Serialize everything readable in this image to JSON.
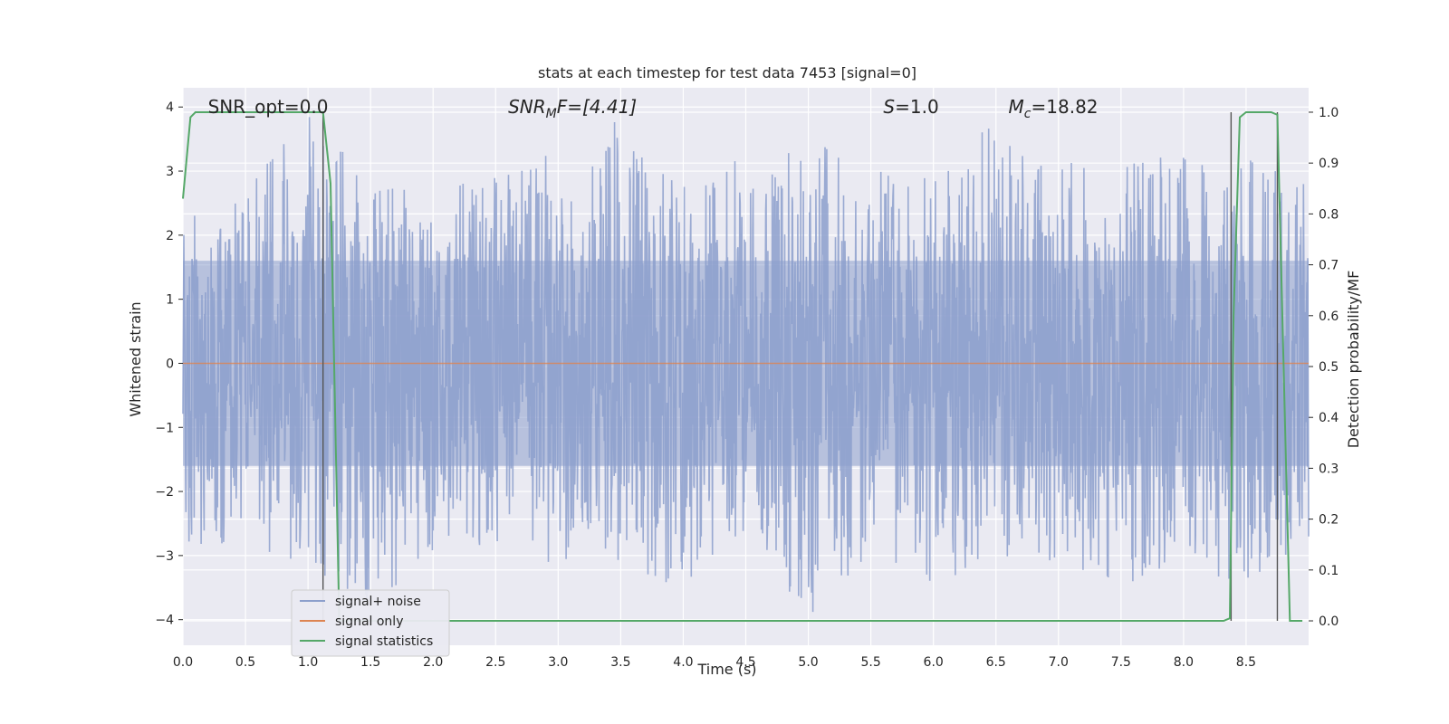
{
  "chart_data": {
    "type": "line",
    "title": "stats at each timestep for test data 7453 [signal=0]",
    "xlabel": "Time (s)",
    "ylabel": "Whitened strain",
    "y2label": "Detection probability/MF",
    "xlim": [
      0.0,
      9.0
    ],
    "ylim": [
      -4.4,
      4.3
    ],
    "y2lim": [
      -0.048,
      1.048
    ],
    "x_ticks": [
      "0.0",
      "0.5",
      "1.0",
      "1.5",
      "2.0",
      "2.5",
      "3.0",
      "3.5",
      "4.0",
      "4.5",
      "5.0",
      "5.5",
      "6.0",
      "6.5",
      "7.0",
      "7.5",
      "8.0",
      "8.5"
    ],
    "x_tick_values": [
      0.0,
      0.5,
      1.0,
      1.5,
      2.0,
      2.5,
      3.0,
      3.5,
      4.0,
      4.5,
      5.0,
      5.5,
      6.0,
      6.5,
      7.0,
      7.5,
      8.0,
      8.5
    ],
    "y_ticks": [
      "4",
      "3",
      "2",
      "1",
      "0",
      "−1",
      "−2",
      "−3",
      "−4"
    ],
    "y_tick_values": [
      4,
      3,
      2,
      1,
      0,
      -1,
      -2,
      -3,
      -4
    ],
    "y2_ticks": [
      "1.0",
      "0.9",
      "0.8",
      "0.7",
      "0.6",
      "0.5",
      "0.4",
      "0.3",
      "0.2",
      "0.1",
      "0.0"
    ],
    "y2_tick_values": [
      1.0,
      0.9,
      0.8,
      0.7,
      0.6,
      0.5,
      0.4,
      0.3,
      0.2,
      0.1,
      0.0
    ],
    "grid": true,
    "legend_position": "lower-left",
    "series": [
      {
        "name": "signal+ noise",
        "color": "#8c9fcc",
        "axis": "left",
        "description_values": "dense noise between approx -4.0 and 3.9",
        "envelope": {
          "x": [
            0.0,
            0.5,
            1.0,
            1.5,
            2.0,
            2.5,
            3.0,
            3.5,
            4.0,
            4.5,
            5.0,
            5.5,
            6.0,
            6.5,
            7.0,
            7.5,
            8.0,
            8.5,
            9.0
          ],
          "upper": [
            2.3,
            2.7,
            3.9,
            2.9,
            3.1,
            2.9,
            3.4,
            3.9,
            3.0,
            3.2,
            3.6,
            3.0,
            3.0,
            3.8,
            3.3,
            3.2,
            3.3,
            3.2,
            3.0
          ],
          "lower": [
            -2.9,
            -2.8,
            -3.2,
            -3.9,
            -3.0,
            -2.9,
            -3.2,
            -3.2,
            -3.5,
            -2.9,
            -4.0,
            -3.0,
            -3.6,
            -3.0,
            -3.1,
            -3.5,
            -3.3,
            -3.4,
            -2.8
          ]
        }
      },
      {
        "name": "signal only",
        "color": "#dd8452",
        "axis": "left",
        "x": [
          0.0,
          9.0
        ],
        "y": [
          0.0,
          0.0
        ]
      },
      {
        "name": "signal statistics",
        "color": "#55a868",
        "axis": "right",
        "x": [
          0.0,
          0.06,
          0.1,
          0.2,
          0.5,
          1.0,
          1.1,
          1.12,
          1.18,
          1.25,
          1.5,
          2.0,
          3.0,
          4.0,
          5.0,
          6.0,
          7.0,
          8.0,
          8.32,
          8.37,
          8.4,
          8.45,
          8.5,
          8.6,
          8.7,
          8.75,
          8.85,
          8.9,
          8.95
        ],
        "y": [
          0.83,
          0.99,
          1.0,
          1.0,
          1.0,
          1.0,
          1.0,
          1.0,
          0.86,
          0.0,
          0.0,
          0.0,
          0.0,
          0.0,
          0.0,
          0.0,
          0.0,
          0.0,
          0.0,
          0.005,
          0.6,
          0.99,
          1.0,
          1.0,
          1.0,
          0.995,
          0.0,
          0.0,
          0.0
        ]
      }
    ],
    "vertical_lines": [
      1.12,
      8.38,
      8.75
    ],
    "annotations": [
      {
        "text": "SNR_opt=0.0",
        "x": 0.2,
        "y": 4.0
      },
      {
        "text": "SNR",
        "sub": "M",
        "suffix": "F=[4.41]",
        "x": 2.6,
        "y": 4.0
      },
      {
        "text": "S",
        "suffix": "=1.0",
        "x": 5.6,
        "y": 4.0
      },
      {
        "text": "M",
        "sub": "c",
        "suffix": "=18.82",
        "x": 6.6,
        "y": 4.0
      }
    ]
  }
}
